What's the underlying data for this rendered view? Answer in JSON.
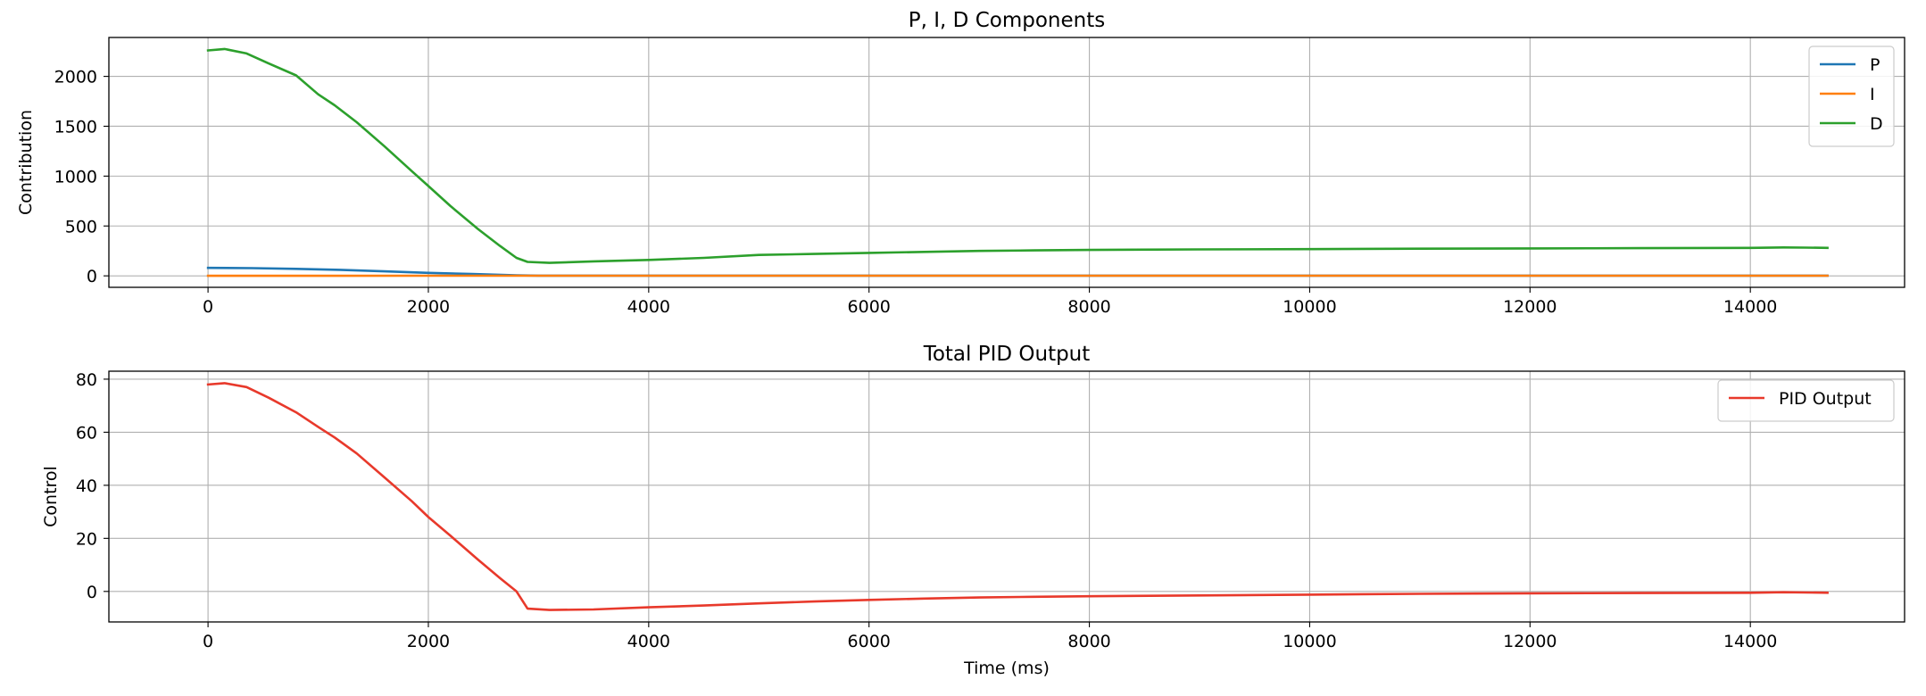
{
  "chart_data": [
    {
      "type": "line",
      "title": "P, I, D Components",
      "xlabel": "",
      "ylabel": "Contribution",
      "xlim": [
        -900,
        15400
      ],
      "ylim": [
        -115,
        2390
      ],
      "xticks": [
        0,
        2000,
        4000,
        6000,
        8000,
        10000,
        12000,
        14000
      ],
      "yticks": [
        0,
        500,
        1000,
        1500,
        2000
      ],
      "grid": true,
      "legend_position": "upper right",
      "series": [
        {
          "name": "P",
          "color": "#1f77b4",
          "x": [
            0,
            400,
            800,
            1200,
            1600,
            2000,
            2400,
            2800,
            3000,
            4000,
            6000,
            8000,
            10000,
            12000,
            14000,
            14700
          ],
          "y": [
            80,
            77,
            70,
            60,
            45,
            30,
            18,
            5,
            2,
            2,
            2,
            2,
            2,
            2,
            2,
            2
          ]
        },
        {
          "name": "I",
          "color": "#ff7f0e",
          "x": [
            0,
            2000,
            4000,
            6000,
            8000,
            10000,
            12000,
            14000,
            14700
          ],
          "y": [
            0,
            1,
            1,
            1,
            1,
            1,
            1,
            1,
            1
          ]
        },
        {
          "name": "D",
          "color": "#2ca02c",
          "x": [
            0,
            150,
            350,
            550,
            800,
            1000,
            1150,
            1350,
            1600,
            1850,
            2000,
            2200,
            2450,
            2650,
            2800,
            2900,
            3100,
            3500,
            4000,
            4500,
            5000,
            5500,
            6000,
            6500,
            7000,
            7500,
            8000,
            9000,
            10000,
            11000,
            12000,
            13000,
            14000,
            14300,
            14500,
            14700
          ],
          "y": [
            2260,
            2275,
            2230,
            2130,
            2010,
            1820,
            1710,
            1540,
            1300,
            1050,
            900,
            700,
            470,
            300,
            180,
            140,
            130,
            145,
            160,
            180,
            210,
            220,
            230,
            240,
            250,
            255,
            260,
            265,
            268,
            272,
            275,
            278,
            280,
            285,
            283,
            280
          ]
        }
      ]
    },
    {
      "type": "line",
      "title": "Total PID Output",
      "xlabel": "Time (ms)",
      "ylabel": "Control",
      "xlim": [
        -900,
        15400
      ],
      "ylim": [
        -11.5,
        83
      ],
      "xticks": [
        0,
        2000,
        4000,
        6000,
        8000,
        10000,
        12000,
        14000
      ],
      "yticks": [
        0,
        20,
        40,
        60,
        80
      ],
      "grid": true,
      "legend_position": "upper right",
      "series": [
        {
          "name": "PID Output",
          "color": "#e8392b",
          "x": [
            0,
            150,
            350,
            550,
            800,
            1000,
            1150,
            1350,
            1600,
            1850,
            2000,
            2200,
            2450,
            2650,
            2800,
            2900,
            3100,
            3500,
            4000,
            4500,
            5000,
            5500,
            6000,
            6500,
            7000,
            7500,
            8000,
            9000,
            10000,
            11000,
            12000,
            13000,
            14000,
            14300,
            14500,
            14700
          ],
          "y": [
            78,
            78.5,
            77,
            73,
            67.5,
            62,
            58,
            52,
            43,
            34,
            28,
            21,
            12,
            5,
            0,
            -6.5,
            -7,
            -6.8,
            -6,
            -5.3,
            -4.5,
            -3.8,
            -3.2,
            -2.7,
            -2.3,
            -2,
            -1.8,
            -1.5,
            -1.2,
            -0.9,
            -0.7,
            -0.6,
            -0.5,
            -0.3,
            -0.4,
            -0.5
          ]
        }
      ]
    }
  ]
}
